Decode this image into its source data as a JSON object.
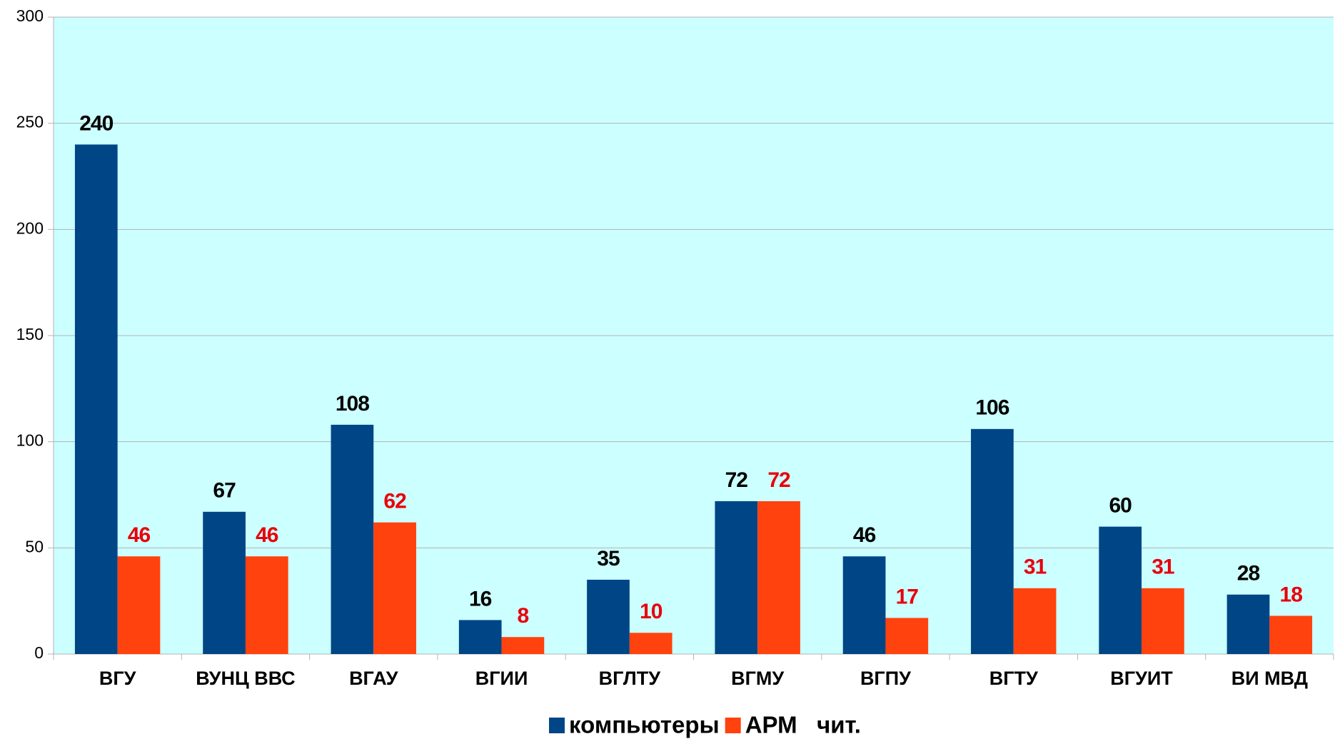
{
  "chart_data": {
    "type": "bar",
    "categories": [
      "ВГУ",
      "ВУНЦ ВВС",
      "ВГАУ",
      "ВГИИ",
      "ВГЛТУ",
      "ВГМУ",
      "ВГПУ",
      "ВГТУ",
      "ВГУИТ",
      "ВИ МВД"
    ],
    "series": [
      {
        "name": "компьютеры",
        "color": "#004586",
        "label_color": "#000000",
        "values": [
          240,
          67,
          108,
          16,
          35,
          72,
          46,
          106,
          60,
          28
        ]
      },
      {
        "name": "АРМ   чит.",
        "color": "#ff420e",
        "label_color": "#e8000b",
        "values": [
          46,
          46,
          62,
          8,
          10,
          72,
          17,
          31,
          31,
          18
        ]
      }
    ],
    "ylim": [
      0,
      300
    ],
    "yticks": [
      0,
      50,
      100,
      150,
      200,
      250,
      300
    ],
    "grid": true,
    "background": "#ccffff",
    "legend": "bottom"
  }
}
